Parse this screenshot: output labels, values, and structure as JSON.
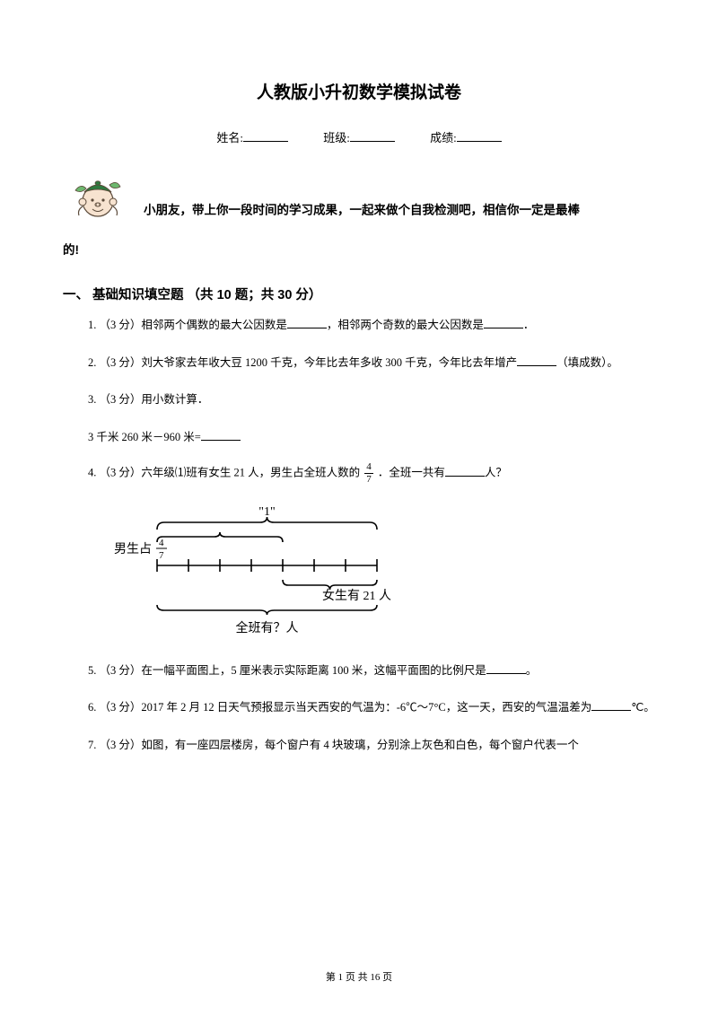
{
  "title": "人教版小升初数学模拟试卷",
  "info": {
    "name_label": "姓名:",
    "class_label": "班级:",
    "score_label": "成绩:"
  },
  "avatar": {
    "face_fill": "#f7e3d0",
    "outline": "#5b4a3a",
    "hat_fill": "#2e7a3f",
    "leaf_fill": "#6db86f"
  },
  "intro_part1": "小朋友，带上你一段时间的学习成果，一起来做个自我检测吧，相信你一定是最棒",
  "intro_part2": "的!",
  "section1": "一、 基础知识填空题 （共 10 题；共 30 分）",
  "q1_a": "1. （3 分）相邻两个偶数的最大公因数是",
  "q1_b": "，相邻两个奇数的最大公因数是",
  "q1_c": "．",
  "q2_a": "2. （3 分）刘大爷家去年收大豆 1200 千克，今年比去年多收 300 千克，今年比去年增产",
  "q2_b": "（填成数）。",
  "q3": "3. （3 分）用小数计算．",
  "q3_sub_a": "3 千米 260 米－960 米=",
  "q4_a": "4. （3 分）六年级⑴班有女生 21 人，男生占全班人数的 ",
  "q4_frac_n": "4",
  "q4_frac_d": "7",
  "q4_b": " ．全班一共有",
  "q4_c": "人？",
  "diagram": {
    "one_label": "\"1\"",
    "boy_label": "男生占",
    "boy_frac_n": "4",
    "boy_frac_d": "7",
    "girl_label": "女生有 21 人",
    "total_label": "全班有？人",
    "stroke": "#000000",
    "segs": 7
  },
  "q5_a": "5. （3 分）在一幅平面图上，5 厘米表示实际距离 100 米，这幅平面图的比例尺是",
  "q5_b": "。",
  "q6_a": "6. （3 分）2017 年 2 月 12 日天气预报显示当天西安的气温为：-6℃～7°C，这一天，西安的气温温差为",
  "q6_b": "℃。",
  "q7": "7. （3 分）如图，有一座四层楼房，每个窗户有 4 块玻璃，分别涂上灰色和白色，每个窗户代表一个",
  "footer_a": "第 ",
  "footer_p": "1",
  "footer_b": " 页 共 ",
  "footer_t": "16",
  "footer_c": " 页"
}
